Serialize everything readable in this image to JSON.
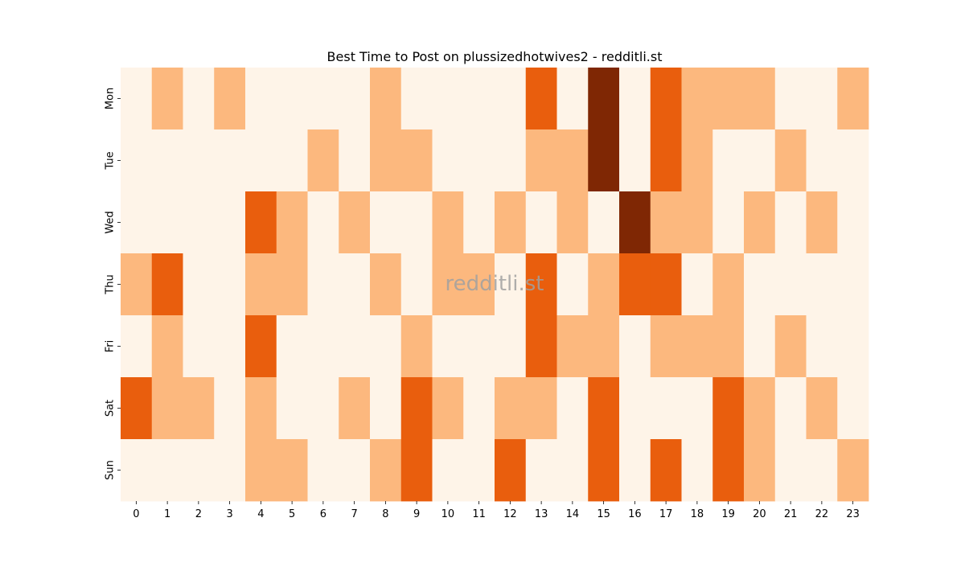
{
  "chart_data": {
    "type": "heatmap",
    "title": "Best Time to Post on plussizedhotwives2 - redditli.st",
    "watermark": "redditli.st",
    "x_labels": [
      "0",
      "1",
      "2",
      "3",
      "4",
      "5",
      "6",
      "7",
      "8",
      "9",
      "10",
      "11",
      "12",
      "13",
      "14",
      "15",
      "16",
      "17",
      "18",
      "19",
      "20",
      "21",
      "22",
      "23"
    ],
    "y_labels": [
      "Mon",
      "Tue",
      "Wed",
      "Thu",
      "Fri",
      "Sat",
      "Sun"
    ],
    "levels": [
      0,
      1,
      2,
      3
    ],
    "colors": [
      "#fef4e8",
      "#fcb87e",
      "#e95e0d",
      "#7f2704"
    ],
    "values": [
      [
        0,
        1,
        0,
        1,
        0,
        0,
        0,
        0,
        1,
        0,
        0,
        0,
        0,
        2,
        0,
        3,
        0,
        2,
        1,
        1,
        1,
        0,
        0,
        1
      ],
      [
        0,
        0,
        0,
        0,
        0,
        0,
        1,
        0,
        1,
        1,
        0,
        0,
        0,
        1,
        1,
        3,
        0,
        2,
        1,
        0,
        0,
        1,
        0,
        0
      ],
      [
        0,
        0,
        0,
        0,
        2,
        1,
        0,
        1,
        0,
        0,
        1,
        0,
        1,
        0,
        1,
        0,
        3,
        1,
        1,
        0,
        1,
        0,
        1,
        0
      ],
      [
        1,
        2,
        0,
        0,
        1,
        1,
        0,
        0,
        1,
        0,
        1,
        1,
        0,
        2,
        0,
        1,
        2,
        2,
        0,
        1,
        0,
        0,
        0,
        0
      ],
      [
        0,
        1,
        0,
        0,
        2,
        0,
        0,
        0,
        0,
        1,
        0,
        0,
        0,
        2,
        1,
        1,
        0,
        1,
        1,
        1,
        0,
        1,
        0,
        0
      ],
      [
        2,
        1,
        1,
        0,
        1,
        0,
        0,
        1,
        0,
        2,
        1,
        0,
        1,
        1,
        0,
        2,
        0,
        0,
        0,
        2,
        1,
        0,
        1,
        0
      ],
      [
        0,
        0,
        0,
        0,
        1,
        1,
        0,
        0,
        1,
        2,
        0,
        0,
        2,
        0,
        0,
        2,
        0,
        2,
        0,
        2,
        1,
        0,
        0,
        1
      ]
    ]
  }
}
